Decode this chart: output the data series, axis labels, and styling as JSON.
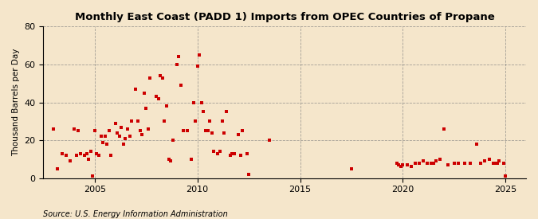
{
  "title": "Monthly East Coast (PADD 1) Imports from OPEC Countries of Propane",
  "ylabel": "Thousand Barrels per Day",
  "source": "Source: U.S. Energy Information Administration",
  "background_color": "#f5e6cb",
  "marker_color": "#cc0000",
  "xlim": [
    2002.5,
    2026.0
  ],
  "ylim": [
    0,
    80
  ],
  "yticks": [
    0,
    20,
    40,
    60,
    80
  ],
  "xticks": [
    2005,
    2010,
    2015,
    2020,
    2025
  ],
  "scatter_x": [
    2003.0,
    2003.2,
    2003.4,
    2003.6,
    2003.8,
    2004.0,
    2004.1,
    2004.2,
    2004.3,
    2004.5,
    2004.6,
    2004.7,
    2004.8,
    2004.9,
    2005.0,
    2005.1,
    2005.2,
    2005.3,
    2005.4,
    2005.5,
    2005.6,
    2005.7,
    2005.8,
    2006.0,
    2006.1,
    2006.2,
    2006.3,
    2006.4,
    2006.5,
    2006.6,
    2006.7,
    2006.8,
    2007.0,
    2007.1,
    2007.2,
    2007.3,
    2007.4,
    2007.5,
    2007.6,
    2007.7,
    2008.0,
    2008.1,
    2008.2,
    2008.3,
    2008.4,
    2008.5,
    2008.6,
    2008.7,
    2008.8,
    2009.0,
    2009.1,
    2009.2,
    2009.3,
    2009.5,
    2009.7,
    2009.8,
    2009.9,
    2010.0,
    2010.1,
    2010.2,
    2010.3,
    2010.4,
    2010.5,
    2010.6,
    2010.7,
    2010.8,
    2011.0,
    2011.1,
    2011.2,
    2011.3,
    2011.4,
    2011.6,
    2011.7,
    2011.8,
    2012.0,
    2012.1,
    2012.2,
    2012.4,
    2012.5,
    2013.5,
    2017.5,
    2019.7,
    2019.8,
    2019.9,
    2020.0,
    2020.2,
    2020.4,
    2020.6,
    2020.8,
    2021.0,
    2021.2,
    2021.4,
    2021.5,
    2021.6,
    2021.8,
    2022.0,
    2022.2,
    2022.5,
    2022.7,
    2023.0,
    2023.3,
    2023.6,
    2023.8,
    2024.0,
    2024.2,
    2024.4,
    2024.5,
    2024.6,
    2024.7,
    2024.9,
    2025.0
  ],
  "scatter_y": [
    26,
    5,
    13,
    12,
    9,
    26,
    12,
    25,
    13,
    12,
    13,
    10,
    14,
    1,
    25,
    13,
    12,
    22,
    19,
    22,
    18,
    25,
    12,
    29,
    24,
    22,
    27,
    18,
    21,
    26,
    22,
    30,
    47,
    30,
    25,
    23,
    45,
    37,
    26,
    53,
    43,
    42,
    54,
    53,
    30,
    38,
    10,
    9,
    20,
    60,
    64,
    49,
    25,
    25,
    10,
    40,
    30,
    59,
    65,
    40,
    35,
    25,
    25,
    30,
    24,
    14,
    13,
    14,
    30,
    24,
    35,
    12,
    13,
    13,
    23,
    12,
    25,
    13,
    2,
    20,
    5,
    8,
    7,
    6,
    7,
    7,
    6,
    8,
    8,
    9,
    8,
    8,
    8,
    9,
    10,
    26,
    7,
    8,
    8,
    8,
    8,
    18,
    8,
    9,
    10,
    8,
    8,
    8,
    9,
    8,
    1
  ]
}
